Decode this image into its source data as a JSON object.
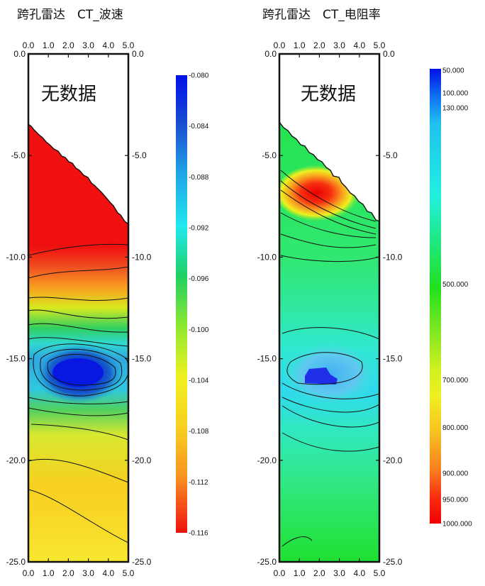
{
  "chart_data": [
    {
      "type": "heatmap",
      "title": "跨孔雷达　CT_波速",
      "nodata_label": "无数据",
      "x_ticks": [
        "0.0",
        "1.0",
        "2.0",
        "3.0",
        "4.0",
        "5.0"
      ],
      "y_ticks": [
        "0.0",
        "-5.0",
        "-10.0",
        "-15.0",
        "-20.0",
        "-25.0"
      ],
      "xlim": [
        0,
        5
      ],
      "ylim": [
        0,
        -25
      ],
      "colorbar": {
        "labels": [
          "-0.080",
          "-0.084",
          "-0.088",
          "-0.092",
          "-0.096",
          "-0.100",
          "-0.104",
          "-0.108",
          "-0.112",
          "-0.116"
        ],
        "colors": [
          "#0010e8",
          "#1a4fd0",
          "#20a8e8",
          "#20e8f0",
          "#20d060",
          "#80e830",
          "#f0f020",
          "#f8d020",
          "#f89020",
          "#f01010"
        ]
      }
    },
    {
      "type": "heatmap",
      "title": "跨孔雷达　CT_电阻率",
      "nodata_label": "无数据",
      "x_ticks": [
        "0.0",
        "1.0",
        "2.0",
        "3.0",
        "4.0",
        "5.0"
      ],
      "y_ticks": [
        "0.0",
        "-5.0",
        "-10.0",
        "-15.0",
        "-20.0",
        "-25.0"
      ],
      "xlim": [
        0,
        5
      ],
      "ylim": [
        0,
        -25
      ],
      "colorbar": {
        "labels": [
          "50.000",
          "100.000",
          "130.000",
          "500.000",
          "700.000",
          "800.000",
          "900.000",
          "950.000",
          "1000.000"
        ],
        "values": [
          50,
          100,
          130,
          500,
          700,
          800,
          900,
          950,
          1000
        ],
        "colors": [
          "#0010e8",
          "#1070f0",
          "#20c0f0",
          "#20e020",
          "#f0f020",
          "#f8c020",
          "#f88020",
          "#f83010",
          "#f00000"
        ]
      }
    }
  ]
}
